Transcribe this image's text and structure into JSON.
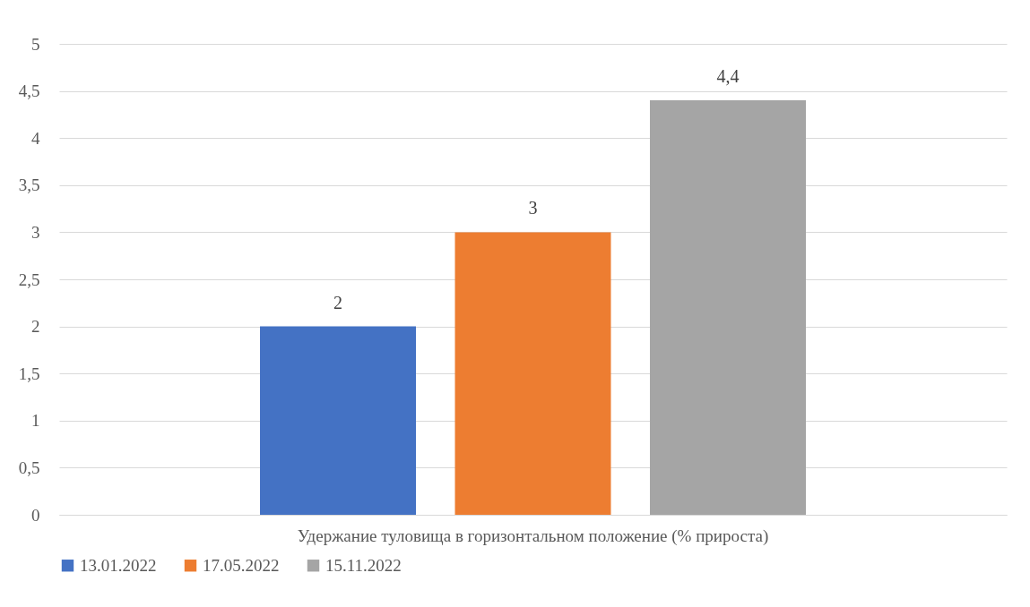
{
  "chart_data": {
    "type": "bar",
    "categories": [
      "Удержание туловища в горизонтальном положение (% прироста)"
    ],
    "series": [
      {
        "name": "13.01.2022",
        "color": "#4472c4",
        "values": [
          2
        ],
        "value_labels": [
          "2"
        ]
      },
      {
        "name": "17.05.2022",
        "color": "#ed7d31",
        "values": [
          3
        ],
        "value_labels": [
          "3"
        ]
      },
      {
        "name": "15.11.2022",
        "color": "#a5a5a5",
        "values": [
          4.4
        ],
        "value_labels": [
          "4,4"
        ]
      }
    ],
    "ylim": [
      0,
      5
    ],
    "yticks": [
      0,
      {
        "value": 0.5,
        "label": "0,5"
      },
      1,
      {
        "value": 1.5,
        "label": "1,5"
      },
      2,
      {
        "value": 2.5,
        "label": "2,5"
      },
      3,
      {
        "value": 3.5,
        "label": "3,5"
      },
      4,
      {
        "value": 4.5,
        "label": "4,5"
      },
      5
    ],
    "grid": "y",
    "legend": "bottom"
  }
}
